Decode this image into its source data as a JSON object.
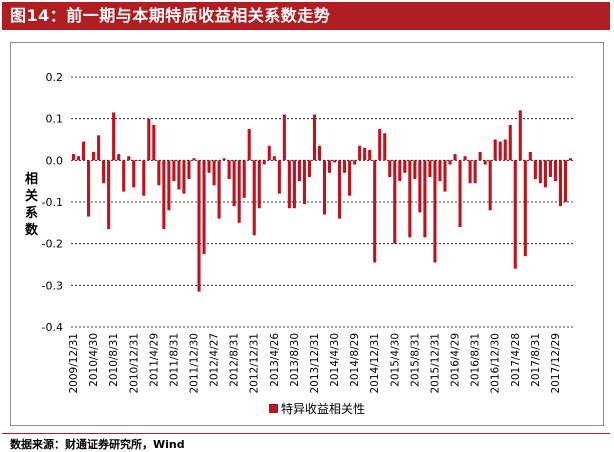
{
  "figure": {
    "title": "图14：前一期与本期特质收益相关系数走势",
    "source": "数据来源：财通证券研究所，Wind"
  },
  "colors": {
    "bar": "#c0121e",
    "title_bg": "#b01e22",
    "grid": "#000000"
  },
  "chart_data": {
    "type": "bar",
    "title": "",
    "ylabel": "相关系数",
    "xlabel": "",
    "ylim": [
      -0.4,
      0.2
    ],
    "yticks": [
      "0.2",
      "0.1",
      "0.0",
      "-0.1",
      "-0.2",
      "-0.3",
      "-0.4"
    ],
    "grid": true,
    "legend_position": "bottom",
    "x_tick_labels": [
      "2009/12/31",
      "2010/4/30",
      "2010/8/31",
      "2010/12/31",
      "2011/4/29",
      "2011/8/31",
      "2011/12/30",
      "2012/4/27",
      "2012/8/31",
      "2012/12/31",
      "2013/4/26",
      "2013/8/30",
      "2013/12/31",
      "2014/4/30",
      "2014/8/29",
      "2014/12/31",
      "2015/4/30",
      "2015/8/31",
      "2015/12/31",
      "2016/4/29",
      "2016/8/31",
      "2016/12/30",
      "2017/4/28",
      "2017/8/31",
      "2017/12/29"
    ],
    "categories": [
      "2009-12",
      "2010-01",
      "2010-02",
      "2010-03",
      "2010-04",
      "2010-05",
      "2010-06",
      "2010-07",
      "2010-08",
      "2010-09",
      "2010-10",
      "2010-11",
      "2010-12",
      "2011-01",
      "2011-02",
      "2011-03",
      "2011-04",
      "2011-05",
      "2011-06",
      "2011-07",
      "2011-08",
      "2011-09",
      "2011-10",
      "2011-11",
      "2011-12",
      "2012-01",
      "2012-02",
      "2012-03",
      "2012-04",
      "2012-05",
      "2012-06",
      "2012-07",
      "2012-08",
      "2012-09",
      "2012-10",
      "2012-11",
      "2012-12",
      "2013-01",
      "2013-02",
      "2013-03",
      "2013-04",
      "2013-05",
      "2013-06",
      "2013-07",
      "2013-08",
      "2013-09",
      "2013-10",
      "2013-11",
      "2013-12",
      "2014-01",
      "2014-02",
      "2014-03",
      "2014-04",
      "2014-05",
      "2014-06",
      "2014-07",
      "2014-08",
      "2014-09",
      "2014-10",
      "2014-11",
      "2014-12",
      "2015-01",
      "2015-02",
      "2015-03",
      "2015-04",
      "2015-05",
      "2015-06",
      "2015-07",
      "2015-08",
      "2015-09",
      "2015-10",
      "2015-11",
      "2015-12",
      "2016-01",
      "2016-02",
      "2016-03",
      "2016-04",
      "2016-05",
      "2016-06",
      "2016-07",
      "2016-08",
      "2016-09",
      "2016-10",
      "2016-11",
      "2016-12",
      "2017-01",
      "2017-02",
      "2017-03",
      "2017-04",
      "2017-05",
      "2017-06",
      "2017-07",
      "2017-08",
      "2017-09",
      "2017-10",
      "2017-11",
      "2017-12",
      "2018-01",
      "2018-02",
      "2018-03"
    ],
    "series": [
      {
        "name": "特异收益相关性",
        "values": [
          0.015,
          0.01,
          0.045,
          -0.135,
          0.02,
          0.06,
          -0.055,
          -0.165,
          0.115,
          0.015,
          -0.075,
          0.01,
          -0.065,
          0.0,
          -0.085,
          0.1,
          0.085,
          -0.06,
          -0.165,
          -0.12,
          -0.05,
          -0.07,
          -0.08,
          -0.045,
          0.005,
          -0.315,
          -0.225,
          -0.03,
          -0.06,
          -0.14,
          0.005,
          -0.045,
          -0.11,
          -0.15,
          -0.09,
          0.075,
          -0.18,
          -0.115,
          -0.01,
          0.035,
          0.01,
          -0.08,
          0.11,
          -0.115,
          -0.115,
          -0.05,
          -0.105,
          -0.04,
          0.11,
          0.035,
          -0.13,
          -0.03,
          -0.005,
          -0.14,
          -0.03,
          -0.085,
          -0.01,
          0.035,
          0.03,
          0.025,
          -0.245,
          0.075,
          0.065,
          -0.04,
          -0.2,
          -0.05,
          -0.03,
          -0.185,
          -0.045,
          -0.125,
          -0.185,
          -0.04,
          -0.245,
          -0.05,
          -0.075,
          -0.01,
          0.015,
          -0.16,
          0.01,
          -0.055,
          -0.055,
          0.02,
          -0.01,
          -0.12,
          0.05,
          0.045,
          0.05,
          0.085,
          -0.26,
          0.12,
          -0.23,
          0.02,
          -0.045,
          -0.055,
          -0.065,
          -0.04,
          -0.05,
          -0.11,
          -0.1,
          0.005
        ]
      }
    ]
  }
}
